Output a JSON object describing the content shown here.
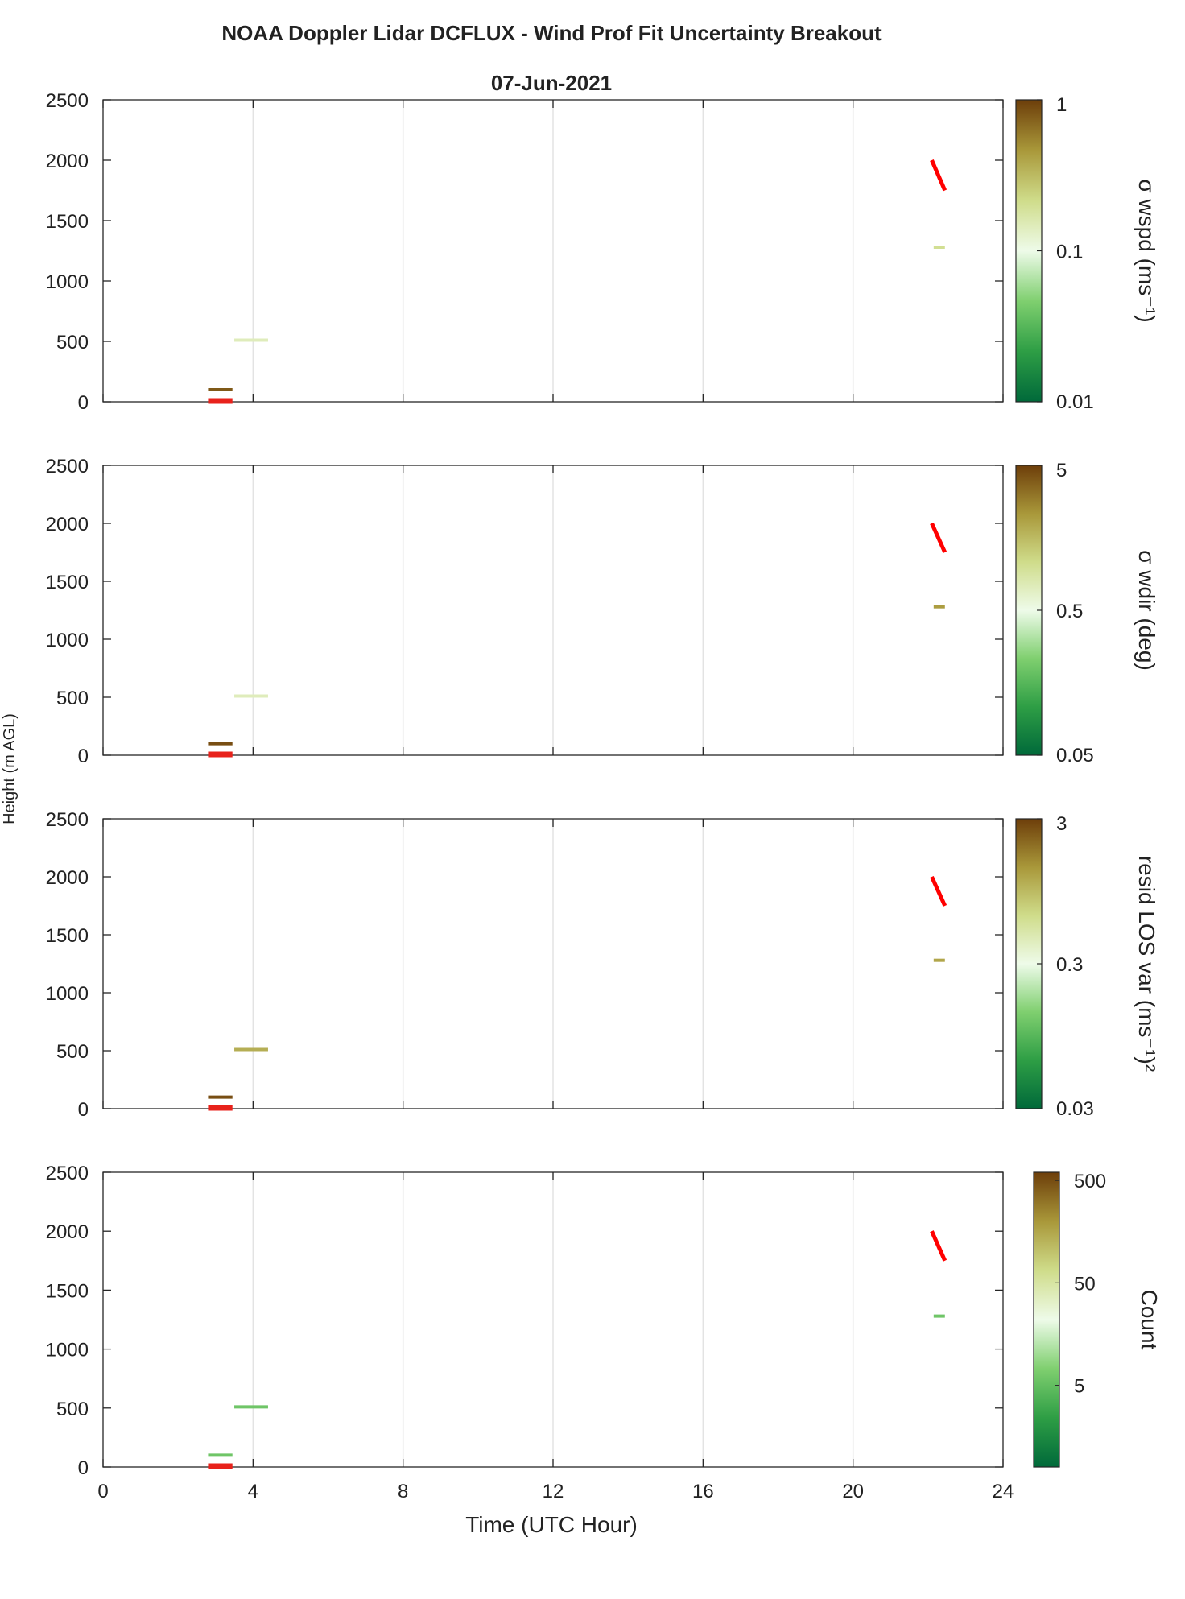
{
  "figure": {
    "title": "NOAA Doppler Lidar DCFLUX - Wind Prof Fit Uncertainty Breakout",
    "subtitle": "07-Jun-2021",
    "ylabel": "Height (m AGL)",
    "xlabel": "Time (UTC Hour)"
  },
  "colormap": [
    "#00693a",
    "#2e9e45",
    "#7fcf6f",
    "#eefbe9",
    "#cfdc8a",
    "#a9983a",
    "#6d3e0a"
  ],
  "chart_data": [
    {
      "type": "heatmap",
      "name": "wspd-panel",
      "xlim": [
        0,
        24
      ],
      "ylim": [
        0,
        2500
      ],
      "xticks": [
        0,
        4,
        8,
        12,
        16,
        20,
        24
      ],
      "yticks": [
        0,
        500,
        1000,
        1500,
        2000,
        2500
      ],
      "show_xtick_labels": false,
      "grid": true,
      "colorbar": {
        "label": "σ wspd (ms⁻¹)",
        "scale": "log",
        "range": [
          0.01,
          1
        ],
        "ticks": [
          {
            "v": 1,
            "label": "1"
          },
          {
            "v": 0.1,
            "label": "0.1"
          },
          {
            "v": 0.01,
            "label": "0.01"
          }
        ]
      },
      "segments": [
        {
          "x0": 2.8,
          "x1": 3.45,
          "y": 100,
          "t": 0.95
        },
        {
          "x0": 3.5,
          "x1": 4.4,
          "y": 510,
          "t": 0.58
        },
        {
          "x0": 22.15,
          "x1": 22.45,
          "y": 1280,
          "t": 0.65
        }
      ],
      "red_marks": [
        {
          "x0": 2.8,
          "x1": 3.45,
          "y0": 0,
          "y1": 0,
          "kind": "h"
        },
        {
          "x0": 22.1,
          "x1": 22.45,
          "y0": 2000,
          "y1": 1750,
          "kind": "d"
        }
      ]
    },
    {
      "type": "heatmap",
      "name": "wdir-panel",
      "xlim": [
        0,
        24
      ],
      "ylim": [
        0,
        2500
      ],
      "xticks": [
        0,
        4,
        8,
        12,
        16,
        20,
        24
      ],
      "yticks": [
        0,
        500,
        1000,
        1500,
        2000,
        2500
      ],
      "show_xtick_labels": false,
      "grid": true,
      "colorbar": {
        "label": "σ wdir (deg)",
        "scale": "log",
        "range": [
          0.05,
          5
        ],
        "ticks": [
          {
            "v": 5,
            "label": "5"
          },
          {
            "v": 0.5,
            "label": "0.5"
          },
          {
            "v": 0.05,
            "label": "0.05"
          }
        ]
      },
      "segments": [
        {
          "x0": 2.8,
          "x1": 3.45,
          "y": 100,
          "t": 0.97
        },
        {
          "x0": 3.5,
          "x1": 4.4,
          "y": 510,
          "t": 0.58
        },
        {
          "x0": 22.15,
          "x1": 22.45,
          "y": 1280,
          "t": 0.82
        }
      ],
      "red_marks": [
        {
          "x0": 2.8,
          "x1": 3.45,
          "y0": 0,
          "y1": 0,
          "kind": "h"
        },
        {
          "x0": 22.1,
          "x1": 22.45,
          "y0": 2000,
          "y1": 1750,
          "kind": "d"
        }
      ]
    },
    {
      "type": "heatmap",
      "name": "resid-panel",
      "xlim": [
        0,
        24
      ],
      "ylim": [
        0,
        2500
      ],
      "xticks": [
        0,
        4,
        8,
        12,
        16,
        20,
        24
      ],
      "yticks": [
        0,
        500,
        1000,
        1500,
        2000,
        2500
      ],
      "show_xtick_labels": false,
      "grid": true,
      "colorbar": {
        "label": "resid LOS var (ms⁻¹)²",
        "scale": "log",
        "range": [
          0.03,
          3
        ],
        "ticks": [
          {
            "v": 3,
            "label": "3"
          },
          {
            "v": 0.3,
            "label": "0.3"
          },
          {
            "v": 0.03,
            "label": "0.03"
          }
        ]
      },
      "segments": [
        {
          "x0": 2.8,
          "x1": 3.45,
          "y": 100,
          "t": 0.97
        },
        {
          "x0": 3.5,
          "x1": 4.4,
          "y": 510,
          "t": 0.78
        },
        {
          "x0": 22.15,
          "x1": 22.45,
          "y": 1280,
          "t": 0.8
        }
      ],
      "red_marks": [
        {
          "x0": 2.8,
          "x1": 3.45,
          "y0": 0,
          "y1": 0,
          "kind": "h"
        },
        {
          "x0": 22.1,
          "x1": 22.45,
          "y0": 2000,
          "y1": 1750,
          "kind": "d"
        }
      ]
    },
    {
      "type": "heatmap",
      "name": "count-panel",
      "xlim": [
        0,
        24
      ],
      "ylim": [
        0,
        2500
      ],
      "xticks": [
        0,
        4,
        8,
        12,
        16,
        20,
        24
      ],
      "yticks": [
        0,
        500,
        1000,
        1500,
        2000,
        2500
      ],
      "show_xtick_labels": true,
      "grid": true,
      "colorbar": {
        "label": "Count",
        "scale": "log",
        "range": [
          0.8,
          600
        ],
        "ticks": [
          {
            "v": 500,
            "label": "500"
          },
          {
            "v": 50,
            "label": "50"
          },
          {
            "v": 5,
            "label": "5"
          }
        ]
      },
      "segments": [
        {
          "x0": 2.8,
          "x1": 3.45,
          "y": 100,
          "t": 0.3
        },
        {
          "x0": 3.5,
          "x1": 4.4,
          "y": 510,
          "t": 0.3
        },
        {
          "x0": 22.15,
          "x1": 22.45,
          "y": 1280,
          "t": 0.3
        }
      ],
      "red_marks": [
        {
          "x0": 2.8,
          "x1": 3.45,
          "y0": 0,
          "y1": 0,
          "kind": "h"
        },
        {
          "x0": 22.1,
          "x1": 22.45,
          "y0": 2000,
          "y1": 1750,
          "kind": "d"
        }
      ]
    }
  ]
}
